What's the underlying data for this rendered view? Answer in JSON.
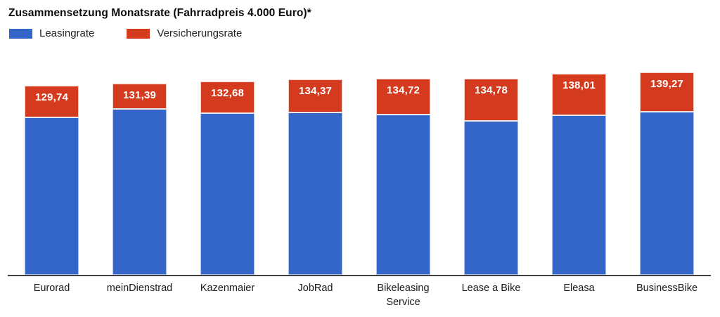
{
  "title": "Zusammensetzung Monatsrate (Fahrradpreis 4.000 Euro)*",
  "legend": [
    {
      "label": "Leasingrate",
      "color": "#3465C8"
    },
    {
      "label": "Versicherungsrate",
      "color": "#D43A1D"
    }
  ],
  "chart_data": {
    "type": "bar",
    "stacked": true,
    "title": "Zusammensetzung Monatsrate (Fahrradpreis 4.000 Euro)*",
    "xlabel": "",
    "ylabel": "",
    "ylim": [
      0,
      155
    ],
    "grid": false,
    "legend_position": "top-left",
    "categories": [
      "Eurorad",
      "meinDienstrad",
      "Kazenmaier",
      "JobRad",
      "Bikeleasing Service",
      "Lease a Bike",
      "Eleasa",
      "BusinessBike"
    ],
    "series": [
      {
        "name": "Leasingrate",
        "color": "#3465C8",
        "values": [
          107.7,
          113.3,
          110.4,
          111.3,
          109.8,
          105.1,
          109.1,
          111.5
        ]
      },
      {
        "name": "Versicherungsrate",
        "color": "#D43A1D",
        "values": [
          22.04,
          18.09,
          22.28,
          23.07,
          24.92,
          29.68,
          28.91,
          27.77
        ]
      }
    ],
    "totals": [
      129.74,
      131.39,
      132.68,
      134.37,
      134.72,
      134.78,
      138.01,
      139.27
    ],
    "bar_labels": [
      "129,74",
      "131,39",
      "132,68",
      "134,37",
      "134,72",
      "134,78",
      "138,01",
      "139,27"
    ]
  }
}
